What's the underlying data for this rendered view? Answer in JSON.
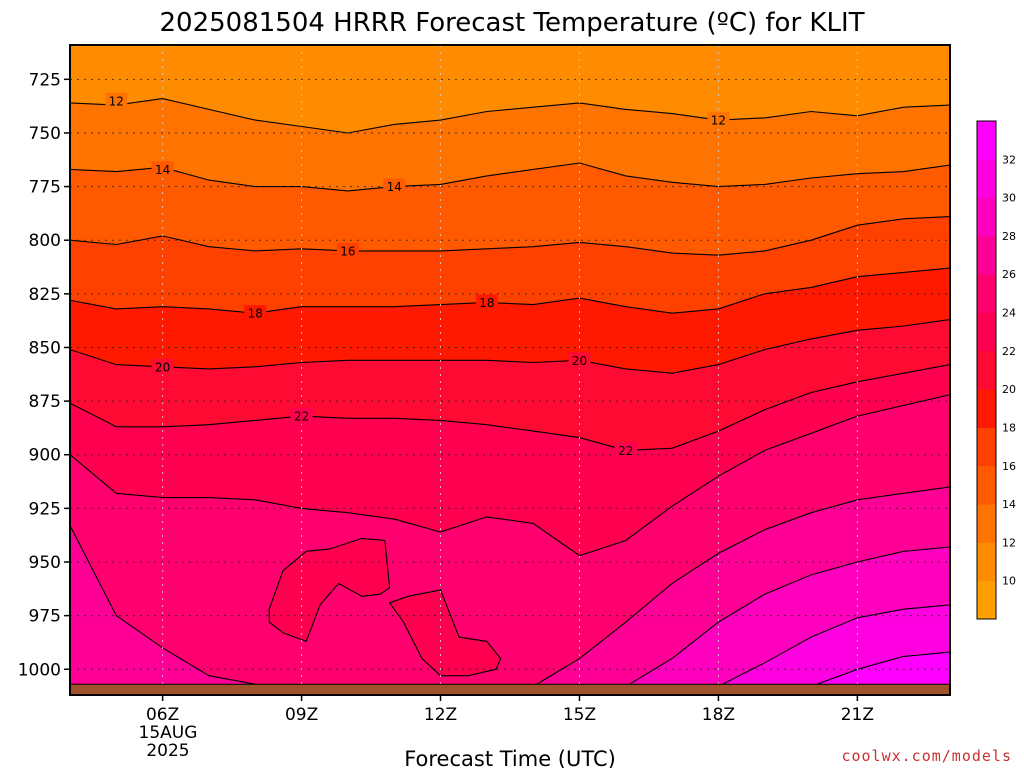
{
  "chart_data": {
    "type": "heatmap",
    "title": "2025081504 HRRR Forecast Temperature (ºC) for KLIT",
    "xlabel": "Forecast Time (UTC)",
    "ylabel": "",
    "x_ticks": [
      {
        "hour": 6,
        "label": "06Z"
      },
      {
        "hour": 9,
        "label": "09Z"
      },
      {
        "hour": 12,
        "label": "12Z"
      },
      {
        "hour": 15,
        "label": "15Z"
      },
      {
        "hour": 18,
        "label": "18Z"
      },
      {
        "hour": 21,
        "label": "21Z"
      }
    ],
    "x_date_label": [
      "15AUG",
      "2025"
    ],
    "xlim": [
      4,
      23
    ],
    "y_ticks": [
      725,
      750,
      775,
      800,
      825,
      850,
      875,
      900,
      925,
      950,
      975,
      1000
    ],
    "ylim": [
      1012,
      709
    ],
    "colorbar": {
      "levels": [
        8,
        10,
        12,
        14,
        16,
        18,
        20,
        22,
        24,
        26,
        28,
        30,
        32,
        34
      ],
      "tick_labels": [
        10,
        12,
        14,
        16,
        18,
        20,
        22,
        24,
        26,
        28,
        30,
        32
      ],
      "colors": [
        "#ffa000",
        "#ff8c00",
        "#ff7300",
        "#ff5a00",
        "#ff4100",
        "#ff1900",
        "#ff0a32",
        "#ff0050",
        "#ff006e",
        "#ff0096",
        "#ff00be",
        "#ff00e1",
        "#ff00ff"
      ]
    },
    "surface_pressure": 1007,
    "contours": [
      {
        "value": 12,
        "label": "12",
        "points": [
          [
            4,
            736
          ],
          [
            5,
            737
          ],
          [
            6,
            734
          ],
          [
            7,
            739
          ],
          [
            8,
            744
          ],
          [
            9,
            747
          ],
          [
            10,
            750
          ],
          [
            11,
            746
          ],
          [
            12,
            744
          ],
          [
            13,
            740
          ],
          [
            14,
            738
          ],
          [
            15,
            736
          ],
          [
            16,
            739
          ],
          [
            17,
            741
          ],
          [
            18,
            744
          ],
          [
            19,
            743
          ],
          [
            20,
            740
          ],
          [
            21,
            742
          ],
          [
            22,
            738
          ],
          [
            23,
            737
          ]
        ],
        "label_at": [
          [
            5,
            735
          ],
          [
            18,
            744
          ]
        ]
      },
      {
        "value": 14,
        "label": "14",
        "points": [
          [
            4,
            767
          ],
          [
            5,
            768
          ],
          [
            6,
            766
          ],
          [
            7,
            772
          ],
          [
            8,
            775
          ],
          [
            9,
            775
          ],
          [
            10,
            777
          ],
          [
            11,
            775
          ],
          [
            12,
            774
          ],
          [
            13,
            770
          ],
          [
            14,
            767
          ],
          [
            15,
            764
          ],
          [
            16,
            770
          ],
          [
            17,
            773
          ],
          [
            18,
            775
          ],
          [
            19,
            774
          ],
          [
            20,
            771
          ],
          [
            21,
            769
          ],
          [
            22,
            768
          ],
          [
            23,
            765
          ]
        ],
        "label_at": [
          [
            6,
            767
          ],
          [
            11,
            775
          ]
        ]
      },
      {
        "value": 16,
        "label": "16",
        "points": [
          [
            4,
            800
          ],
          [
            5,
            802
          ],
          [
            6,
            798
          ],
          [
            7,
            803
          ],
          [
            8,
            805
          ],
          [
            9,
            804
          ],
          [
            10,
            805
          ],
          [
            11,
            805
          ],
          [
            12,
            805
          ],
          [
            13,
            804
          ],
          [
            14,
            803
          ],
          [
            15,
            801
          ],
          [
            16,
            803
          ],
          [
            17,
            806
          ],
          [
            18,
            807
          ],
          [
            19,
            805
          ],
          [
            20,
            800
          ],
          [
            21,
            793
          ],
          [
            22,
            790
          ],
          [
            23,
            789
          ]
        ],
        "label_at": [
          [
            10,
            805
          ]
        ]
      },
      {
        "value": 18,
        "label": "18",
        "points": [
          [
            4,
            828
          ],
          [
            5,
            832
          ],
          [
            6,
            831
          ],
          [
            7,
            832
          ],
          [
            8,
            834
          ],
          [
            9,
            831
          ],
          [
            10,
            831
          ],
          [
            11,
            831
          ],
          [
            12,
            830
          ],
          [
            13,
            829
          ],
          [
            14,
            830
          ],
          [
            15,
            827
          ],
          [
            16,
            831
          ],
          [
            17,
            834
          ],
          [
            18,
            832
          ],
          [
            19,
            825
          ],
          [
            20,
            822
          ],
          [
            21,
            817
          ],
          [
            22,
            815
          ],
          [
            23,
            813
          ]
        ],
        "label_at": [
          [
            8,
            834
          ],
          [
            13,
            829
          ]
        ]
      },
      {
        "value": 20,
        "label": "20",
        "points": [
          [
            4,
            851
          ],
          [
            5,
            858
          ],
          [
            6,
            859
          ],
          [
            7,
            860
          ],
          [
            8,
            859
          ],
          [
            9,
            857
          ],
          [
            10,
            856
          ],
          [
            11,
            856
          ],
          [
            12,
            856
          ],
          [
            13,
            856
          ],
          [
            14,
            857
          ],
          [
            15,
            856
          ],
          [
            16,
            860
          ],
          [
            17,
            862
          ],
          [
            18,
            858
          ],
          [
            19,
            851
          ],
          [
            20,
            846
          ],
          [
            21,
            842
          ],
          [
            22,
            840
          ],
          [
            23,
            837
          ]
        ],
        "label_at": [
          [
            6,
            859
          ],
          [
            15,
            856
          ]
        ]
      },
      {
        "value": 22,
        "label": "22",
        "points": [
          [
            4,
            876
          ],
          [
            5,
            887
          ],
          [
            6,
            887
          ],
          [
            7,
            886
          ],
          [
            8,
            884
          ],
          [
            9,
            882
          ],
          [
            10,
            883
          ],
          [
            11,
            883
          ],
          [
            12,
            884
          ],
          [
            13,
            886
          ],
          [
            14,
            889
          ],
          [
            15,
            892
          ],
          [
            16,
            898
          ],
          [
            17,
            897
          ],
          [
            18,
            889
          ],
          [
            19,
            879
          ],
          [
            20,
            871
          ],
          [
            21,
            866
          ],
          [
            22,
            862
          ],
          [
            23,
            858
          ]
        ],
        "label_at": [
          [
            9,
            882
          ],
          [
            16,
            898
          ]
        ]
      },
      {
        "value": 24,
        "label": "",
        "points": [
          [
            4,
            900
          ],
          [
            5,
            918
          ],
          [
            6,
            920
          ],
          [
            7,
            920
          ],
          [
            8,
            921
          ],
          [
            9,
            925
          ],
          [
            10,
            927
          ],
          [
            11,
            930
          ],
          [
            12,
            936
          ],
          [
            13,
            929
          ],
          [
            14,
            932
          ],
          [
            15,
            947
          ],
          [
            16,
            940
          ],
          [
            17,
            924
          ],
          [
            18,
            910
          ],
          [
            19,
            898
          ],
          [
            20,
            890
          ],
          [
            21,
            882
          ],
          [
            22,
            877
          ],
          [
            23,
            872
          ]
        ],
        "label_at": []
      },
      {
        "value": 26,
        "label": "",
        "points": [
          [
            4,
            933
          ],
          [
            5,
            975
          ],
          [
            6,
            990
          ],
          [
            7,
            1003
          ],
          [
            8,
            1007
          ]
        ],
        "label_at": []
      },
      {
        "value": 26,
        "label": "",
        "points": [
          [
            14,
            1008
          ],
          [
            15,
            995
          ],
          [
            16,
            978
          ],
          [
            17,
            960
          ],
          [
            18,
            946
          ],
          [
            19,
            935
          ],
          [
            20,
            927
          ],
          [
            21,
            921
          ],
          [
            22,
            918
          ],
          [
            23,
            915
          ]
        ],
        "label_at": []
      },
      {
        "value": 28,
        "label": "",
        "points": [
          [
            16,
            1008
          ],
          [
            17,
            995
          ],
          [
            18,
            978
          ],
          [
            19,
            965
          ],
          [
            20,
            956
          ],
          [
            21,
            950
          ],
          [
            22,
            945
          ],
          [
            23,
            943
          ]
        ],
        "label_at": []
      },
      {
        "value": 30,
        "label": "",
        "points": [
          [
            18,
            1008
          ],
          [
            19,
            997
          ],
          [
            20,
            985
          ],
          [
            21,
            976
          ],
          [
            22,
            972
          ],
          [
            23,
            970
          ]
        ],
        "label_at": []
      },
      {
        "value": 32,
        "label": "",
        "points": [
          [
            20,
            1008
          ],
          [
            21,
            1000
          ],
          [
            22,
            994
          ],
          [
            23,
            992
          ]
        ],
        "label_at": []
      }
    ],
    "blobs": [
      {
        "value": 24,
        "points": [
          [
            8.3,
            972
          ],
          [
            8.6,
            954
          ],
          [
            9.1,
            945
          ],
          [
            9.6,
            944
          ],
          [
            10.3,
            939
          ],
          [
            10.8,
            940
          ],
          [
            10.9,
            962
          ],
          [
            10.7,
            965
          ],
          [
            10.3,
            966
          ],
          [
            9.8,
            960
          ],
          [
            9.4,
            970
          ],
          [
            9.1,
            987
          ],
          [
            8.6,
            983
          ],
          [
            8.3,
            978
          ]
        ]
      },
      {
        "value": 24,
        "points": [
          [
            11.3,
            966
          ],
          [
            12.0,
            963
          ],
          [
            12.4,
            985
          ],
          [
            13.0,
            987
          ],
          [
            13.3,
            995
          ],
          [
            13.2,
            1000
          ],
          [
            12.6,
            1003
          ],
          [
            12.0,
            1003
          ],
          [
            11.6,
            995
          ],
          [
            11.2,
            978
          ],
          [
            10.9,
            969
          ]
        ]
      }
    ]
  },
  "credit": "coolwx.com/models"
}
